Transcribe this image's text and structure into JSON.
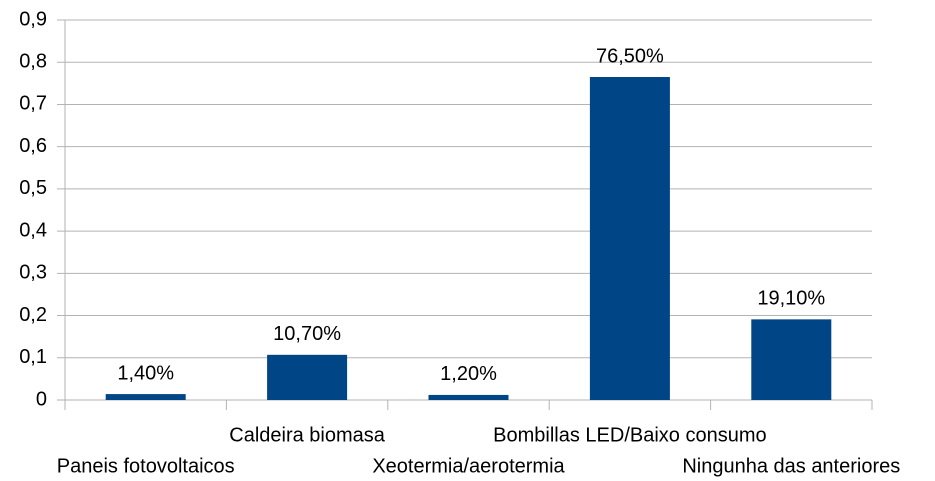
{
  "chart_data": {
    "type": "bar",
    "categories": [
      "Paneis fotovoltaicos",
      "Caldeira biomasa",
      "Xeotermia/aerotermia",
      "Bombillas LED/Baixo consumo",
      "Ningunha das anteriores"
    ],
    "values": [
      0.014,
      0.107,
      0.012,
      0.765,
      0.191
    ],
    "value_labels": [
      "1,40%",
      "10,70%",
      "1,20%",
      "76,50%",
      "19,10%"
    ],
    "color": "#004586",
    "ylim": [
      0,
      0.9
    ],
    "yticks": [
      0,
      {
        "value": 0.1,
        "label": "0,1"
      },
      {
        "value": 0.2,
        "label": "0,2"
      },
      {
        "value": 0.3,
        "label": "0,3"
      },
      {
        "value": 0.4,
        "label": "0,4"
      },
      {
        "value": 0.5,
        "label": "0,5"
      },
      {
        "value": 0.6,
        "label": "0,6"
      },
      {
        "value": 0.7,
        "label": "0,7"
      },
      {
        "value": 0.8,
        "label": "0,8"
      },
      {
        "value": 0.9,
        "label": "0,9"
      }
    ],
    "grid": true
  }
}
